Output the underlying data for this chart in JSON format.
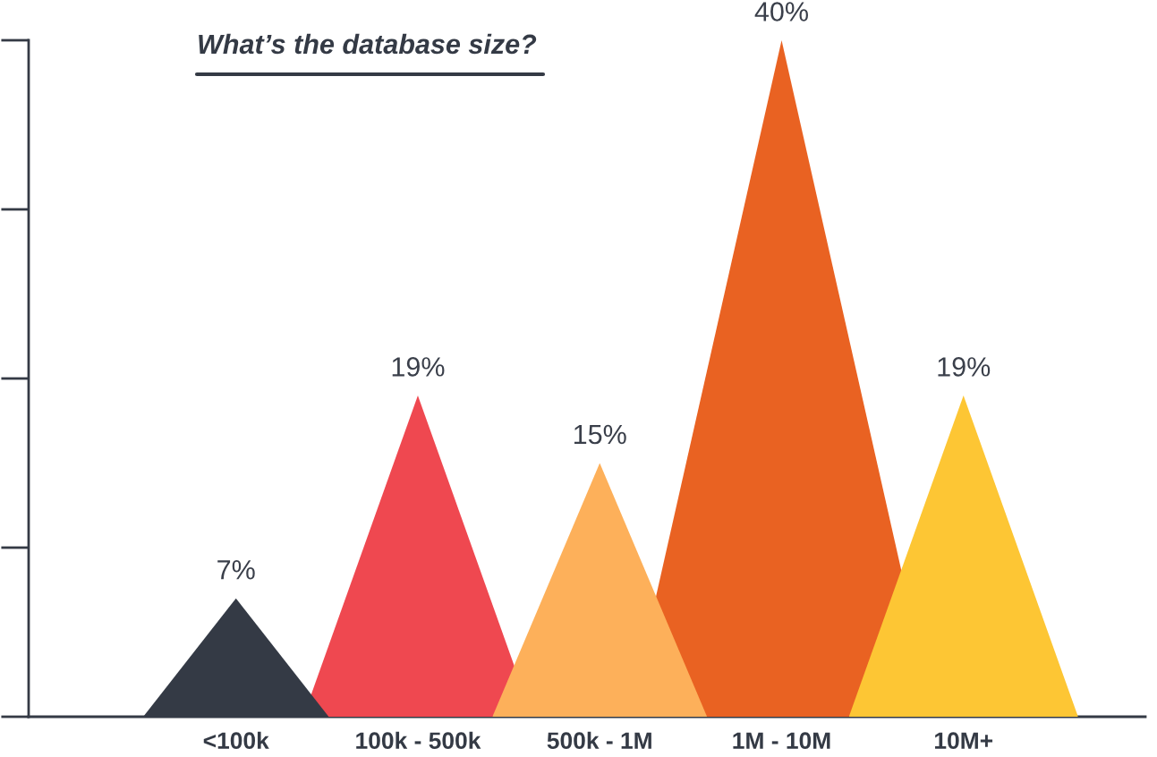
{
  "chart_data": {
    "type": "bar",
    "title": "What’s the database size?",
    "categories": [
      "<100k",
      "100k - 500k",
      "500k - 1M",
      "1M - 10M",
      "10M+"
    ],
    "values": [
      7,
      19,
      15,
      40,
      19
    ],
    "colors": [
      "#343a45",
      "#ef4850",
      "#fdb05a",
      "#e96222",
      "#fdc634"
    ],
    "ylim": [
      0,
      40
    ],
    "value_labels": [
      "7%",
      "19%",
      "15%",
      "40%",
      "19%"
    ],
    "tick_labels": "x",
    "grid": false,
    "legend": false
  }
}
